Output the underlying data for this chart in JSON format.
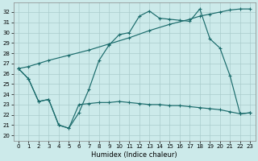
{
  "xlabel": "Humidex (Indice chaleur)",
  "bg_color": "#cceaea",
  "grid_color": "#aacccc",
  "line_color": "#1a6b6b",
  "x_ticks": [
    0,
    1,
    2,
    3,
    4,
    5,
    6,
    7,
    8,
    9,
    10,
    11,
    12,
    13,
    14,
    15,
    16,
    17,
    18,
    19,
    20,
    21,
    22,
    23
  ],
  "y_ticks": [
    20,
    21,
    22,
    23,
    24,
    25,
    26,
    27,
    28,
    29,
    30,
    31,
    32
  ],
  "ylim": [
    19.5,
    32.9
  ],
  "xlim": [
    -0.5,
    23.5
  ],
  "series1_x": [
    0,
    1,
    2,
    3,
    4,
    5,
    6,
    7,
    8,
    9,
    10,
    11,
    12,
    13,
    14,
    15,
    16,
    17,
    18,
    19,
    20,
    21,
    22,
    23
  ],
  "series1_y": [
    26.5,
    25.5,
    23.3,
    23.5,
    21.0,
    20.7,
    22.2,
    24.5,
    27.3,
    28.8,
    29.8,
    30.0,
    31.6,
    32.1,
    31.4,
    31.3,
    31.2,
    31.1,
    32.3,
    29.4,
    28.5,
    25.8,
    22.1,
    22.2
  ],
  "series2_x": [
    0,
    1,
    2,
    3,
    5,
    7,
    9,
    11,
    13,
    15,
    17,
    18,
    19,
    20,
    21,
    22,
    23
  ],
  "series2_y": [
    26.5,
    26.7,
    27.0,
    27.3,
    27.8,
    28.3,
    28.9,
    29.5,
    30.2,
    30.8,
    31.3,
    31.6,
    31.8,
    32.0,
    32.2,
    32.3,
    32.3
  ],
  "series3_x": [
    0,
    1,
    2,
    3,
    4,
    5,
    6,
    7,
    8,
    9,
    10,
    11,
    12,
    13,
    14,
    15,
    16,
    17,
    18,
    19,
    20,
    21,
    22,
    23
  ],
  "series3_y": [
    26.5,
    25.5,
    23.3,
    23.5,
    21.0,
    20.7,
    23.0,
    23.1,
    23.2,
    23.2,
    23.3,
    23.2,
    23.1,
    23.0,
    23.0,
    22.9,
    22.9,
    22.8,
    22.7,
    22.6,
    22.5,
    22.3,
    22.1,
    22.2
  ]
}
